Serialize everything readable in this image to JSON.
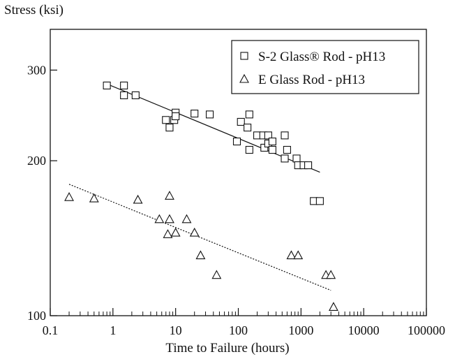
{
  "chart_data": {
    "type": "scatter",
    "ylabel": "Stress (ksi)",
    "xlabel": "Time to Failure (hours)",
    "x_scale": "log",
    "y_scale": "log",
    "xlim": [
      0.1,
      100000
    ],
    "ylim": [
      100,
      360
    ],
    "x_ticks": [
      "0.1",
      "1",
      "10",
      "100",
      "1000",
      "10000",
      "100000"
    ],
    "y_ticks": [
      "100",
      "200",
      "300"
    ],
    "grid": false,
    "legend_position": "top-right",
    "series": [
      {
        "name": "S-2 Glass® Rod - pH13",
        "marker": "square",
        "points": [
          [
            0.8,
            280
          ],
          [
            1.5,
            280
          ],
          [
            1.5,
            268
          ],
          [
            2.3,
            268
          ],
          [
            7,
            240
          ],
          [
            8,
            232
          ],
          [
            9.5,
            240
          ],
          [
            10,
            248
          ],
          [
            10,
            244
          ],
          [
            20,
            247
          ],
          [
            35,
            246
          ],
          [
            95,
            218
          ],
          [
            110,
            238
          ],
          [
            140,
            232
          ],
          [
            150,
            210
          ],
          [
            150,
            246
          ],
          [
            200,
            224
          ],
          [
            250,
            224
          ],
          [
            260,
            212
          ],
          [
            300,
            224
          ],
          [
            300,
            216
          ],
          [
            350,
            218
          ],
          [
            350,
            210
          ],
          [
            550,
            224
          ],
          [
            550,
            202
          ],
          [
            600,
            210
          ],
          [
            850,
            202
          ],
          [
            900,
            196
          ],
          [
            1100,
            196
          ],
          [
            1300,
            196
          ],
          [
            1600,
            167
          ],
          [
            2000,
            167
          ]
        ],
        "trend": {
          "x": [
            0.8,
            2000
          ],
          "y": [
            282,
            190
          ]
        }
      },
      {
        "name": "E Glass Rod - pH13",
        "marker": "triangle",
        "points": [
          [
            0.2,
            170
          ],
          [
            0.5,
            169
          ],
          [
            2.5,
            168
          ],
          [
            5.5,
            154
          ],
          [
            8,
            171
          ],
          [
            8,
            154
          ],
          [
            7.5,
            144
          ],
          [
            10,
            145
          ],
          [
            15,
            154
          ],
          [
            20,
            145
          ],
          [
            25,
            131
          ],
          [
            45,
            120
          ],
          [
            700,
            131
          ],
          [
            900,
            131
          ],
          [
            2500,
            120
          ],
          [
            3000,
            120
          ],
          [
            3300,
            104
          ]
        ],
        "trend": {
          "x": [
            0.2,
            3000
          ],
          "y": [
            180,
            112
          ]
        }
      }
    ]
  }
}
